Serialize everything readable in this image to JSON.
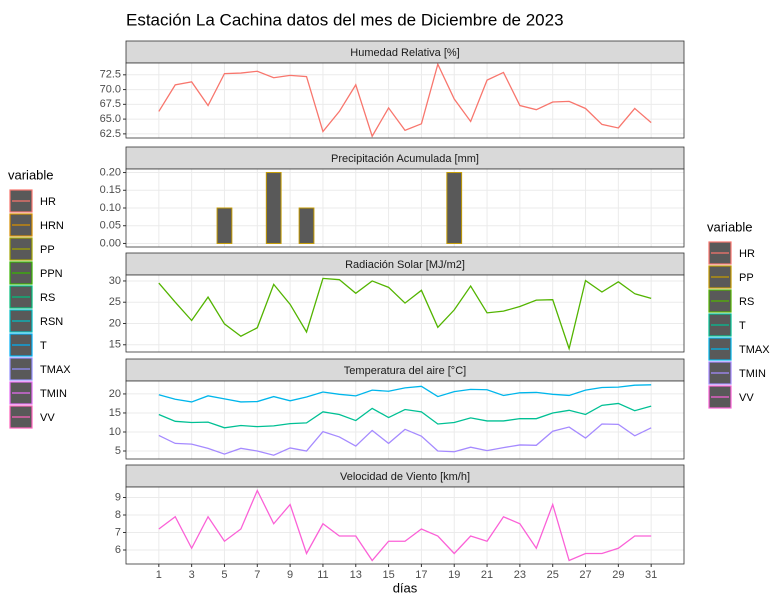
{
  "title": "Estación La Cachina datos del mes de Diciembre de 2023",
  "x_label": "días",
  "legends": [
    {
      "title": "variable",
      "entries": [
        {
          "name": "HR",
          "color": "#F8766D"
        },
        {
          "name": "HRN",
          "color": "#D89000"
        },
        {
          "name": "PP",
          "color": "#A3A500"
        },
        {
          "name": "PPN",
          "color": "#39B600"
        },
        {
          "name": "RS",
          "color": "#00BF7D"
        },
        {
          "name": "RSN",
          "color": "#00BFC4"
        },
        {
          "name": "T",
          "color": "#00B0F6"
        },
        {
          "name": "TMAX",
          "color": "#9590FF"
        },
        {
          "name": "TMIN",
          "color": "#E76BF3"
        },
        {
          "name": "VV",
          "color": "#FF62BC"
        }
      ]
    },
    {
      "title": "variable",
      "entries": [
        {
          "name": "HR",
          "color": "#F8766D"
        },
        {
          "name": "PP",
          "color": "#C49A00"
        },
        {
          "name": "RS",
          "color": "#53B400"
        },
        {
          "name": "T",
          "color": "#00C094"
        },
        {
          "name": "TMAX",
          "color": "#00B6EB"
        },
        {
          "name": "TMIN",
          "color": "#A58AFF"
        },
        {
          "name": "VV",
          "color": "#FB61D7"
        }
      ]
    }
  ],
  "chart_data": [
    {
      "type": "line",
      "title": "Humedad Relativa [%]",
      "x": [
        1,
        2,
        3,
        4,
        5,
        6,
        7,
        8,
        9,
        10,
        11,
        12,
        13,
        14,
        15,
        16,
        17,
        18,
        19,
        20,
        21,
        22,
        23,
        24,
        25,
        26,
        27,
        28,
        29,
        30,
        31
      ],
      "xlim": [
        -1,
        33
      ],
      "xticks": [
        1,
        3,
        5,
        7,
        9,
        11,
        13,
        15,
        17,
        19,
        21,
        23,
        25,
        27,
        29,
        31
      ],
      "ylim": [
        61.8,
        74.5
      ],
      "yticks": [
        62.5,
        {
          "value": 65,
          "label": "65.0"
        },
        67.5,
        {
          "value": 70,
          "label": "70.0"
        },
        72.5
      ],
      "series": [
        {
          "name": "HR",
          "color": "#F8766D",
          "values": [
            66.3,
            70.8,
            71.3,
            67.3,
            72.7,
            72.8,
            73.1,
            72.0,
            72.4,
            72.2,
            62.9,
            66.3,
            70.8,
            62.1,
            66.9,
            63.1,
            64.2,
            74.3,
            68.4,
            64.6,
            71.6,
            72.9,
            67.3,
            66.6,
            67.9,
            68.0,
            66.8,
            64.1,
            63.5,
            66.8,
            64.4
          ]
        }
      ]
    },
    {
      "type": "bar",
      "title": "Precipitación Acumulada [mm]",
      "x": [
        1,
        2,
        3,
        4,
        5,
        6,
        7,
        8,
        9,
        10,
        11,
        12,
        13,
        14,
        15,
        16,
        17,
        18,
        19,
        20,
        21,
        22,
        23,
        24,
        25,
        26,
        27,
        28,
        29,
        30,
        31
      ],
      "xlim": [
        -1,
        33
      ],
      "xticks": [
        1,
        3,
        5,
        7,
        9,
        11,
        13,
        15,
        17,
        19,
        21,
        23,
        25,
        27,
        29,
        31
      ],
      "ylim": [
        -0.01,
        0.21
      ],
      "yticks": [
        {
          "value": 0,
          "label": "0.00"
        },
        {
          "value": 0.05,
          "label": "0.05"
        },
        {
          "value": 0.1,
          "label": "0.10"
        },
        {
          "value": 0.15,
          "label": "0.15"
        },
        {
          "value": 0.2,
          "label": "0.20"
        }
      ],
      "series": [
        {
          "name": "PP",
          "color": "#C49A00",
          "values": [
            0,
            0,
            0,
            0,
            0.1,
            0,
            0,
            0.2,
            0,
            0.1,
            0,
            0,
            0,
            0,
            0,
            0,
            0,
            0,
            0.2,
            0,
            0,
            0,
            0,
            0,
            0,
            0,
            0,
            0,
            0,
            0,
            0
          ]
        }
      ]
    },
    {
      "type": "line",
      "title": "Radiación Solar [MJ/m2]",
      "x": [
        1,
        2,
        3,
        4,
        5,
        6,
        7,
        8,
        9,
        10,
        11,
        12,
        13,
        14,
        15,
        16,
        17,
        18,
        19,
        20,
        21,
        22,
        23,
        24,
        25,
        26,
        27,
        28,
        29,
        30,
        31
      ],
      "xlim": [
        -1,
        33
      ],
      "xticks": [
        1,
        3,
        5,
        7,
        9,
        11,
        13,
        15,
        17,
        19,
        21,
        23,
        25,
        27,
        29,
        31
      ],
      "ylim": [
        13.3,
        31.4
      ],
      "yticks": [
        15,
        20,
        25,
        30
      ],
      "series": [
        {
          "name": "RS",
          "color": "#53B400",
          "values": [
            29.5,
            25,
            20.7,
            26.2,
            19.9,
            17,
            19,
            29.2,
            24.5,
            18,
            30.6,
            30.3,
            27.1,
            30,
            28.5,
            24.8,
            27.8,
            19.1,
            23.2,
            28.8,
            22.5,
            22.9,
            24,
            25.5,
            25.6,
            14.1,
            30.1,
            27.4,
            29.8,
            27,
            25.9
          ]
        }
      ]
    },
    {
      "type": "line",
      "title": "Temperatura del aire [°C]",
      "x": [
        1,
        2,
        3,
        4,
        5,
        6,
        7,
        8,
        9,
        10,
        11,
        12,
        13,
        14,
        15,
        16,
        17,
        18,
        19,
        20,
        21,
        22,
        23,
        24,
        25,
        26,
        27,
        28,
        29,
        30,
        31
      ],
      "xlim": [
        -1,
        33
      ],
      "xticks": [
        1,
        3,
        5,
        7,
        9,
        11,
        13,
        15,
        17,
        19,
        21,
        23,
        25,
        27,
        29,
        31
      ],
      "ylim": [
        2.9,
        23.4
      ],
      "yticks": [
        5,
        10,
        15,
        20
      ],
      "series": [
        {
          "name": "T",
          "color": "#00C094",
          "values": [
            14.6,
            12.8,
            12.5,
            12.6,
            11.1,
            11.7,
            11.4,
            11.6,
            12.2,
            12.4,
            15.3,
            14.6,
            13,
            16.2,
            13.8,
            15.9,
            15.3,
            12.1,
            12.5,
            13.7,
            12.9,
            12.9,
            13.5,
            13.5,
            15,
            15.7,
            14.6,
            17,
            17.5,
            15.6,
            16.8
          ]
        },
        {
          "name": "TMAX",
          "color": "#00B6EB",
          "values": [
            19.8,
            18.6,
            17.9,
            19.5,
            18.7,
            17.9,
            18,
            19.3,
            18.2,
            19.2,
            20.5,
            19.9,
            19.5,
            21,
            20.7,
            21.6,
            22,
            19.3,
            20.6,
            21.2,
            21.1,
            19.6,
            20.3,
            20.4,
            19.9,
            19.6,
            21,
            21.7,
            21.8,
            22.3,
            22.4
          ]
        },
        {
          "name": "TMIN",
          "color": "#A58AFF",
          "values": [
            9.1,
            7,
            6.8,
            5.7,
            4.2,
            5.7,
            5,
            3.9,
            5.8,
            5,
            10.1,
            8.7,
            6.3,
            10.4,
            7,
            10.7,
            8.9,
            5,
            4.8,
            6,
            5.1,
            5.9,
            6.6,
            6.5,
            10.2,
            11.3,
            8.4,
            12.1,
            12,
            9,
            11.1
          ]
        }
      ]
    },
    {
      "type": "line",
      "title": "Velocidad de Viento [km/h]",
      "x": [
        1,
        2,
        3,
        4,
        5,
        6,
        7,
        8,
        9,
        10,
        11,
        12,
        13,
        14,
        15,
        16,
        17,
        18,
        19,
        20,
        21,
        22,
        23,
        24,
        25,
        26,
        27,
        28,
        29,
        30,
        31
      ],
      "xlim": [
        -1,
        33
      ],
      "xticks": [
        1,
        3,
        5,
        7,
        9,
        11,
        13,
        15,
        17,
        19,
        21,
        23,
        25,
        27,
        29,
        31
      ],
      "ylim": [
        5.2,
        9.6
      ],
      "yticks": [
        6,
        7,
        8,
        9
      ],
      "series": [
        {
          "name": "VV",
          "color": "#FB61D7",
          "values": [
            7.2,
            7.9,
            6.1,
            7.9,
            6.5,
            7.2,
            9.4,
            7.5,
            8.6,
            5.8,
            7.5,
            6.8,
            6.8,
            5.4,
            6.5,
            6.5,
            7.2,
            6.8,
            5.8,
            6.8,
            6.5,
            7.9,
            7.5,
            6.1,
            8.6,
            5.4,
            5.8,
            5.8,
            6.1,
            6.8,
            6.8
          ]
        }
      ]
    }
  ]
}
